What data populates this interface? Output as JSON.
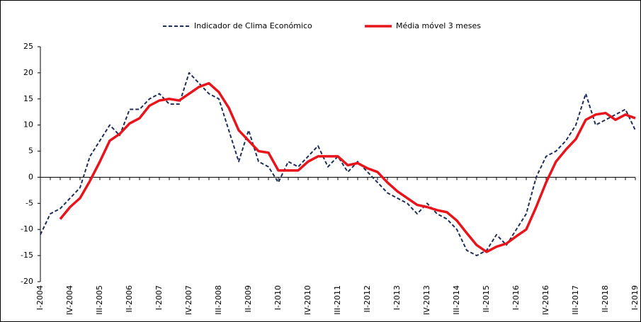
{
  "chart_data": {
    "type": "line",
    "categories": [
      "I-2004",
      null,
      null,
      "IV-2004",
      null,
      null,
      "III-2005",
      null,
      null,
      "II-2006",
      null,
      null,
      "I-2007",
      null,
      null,
      "IV-2007",
      null,
      null,
      "III-2008",
      null,
      null,
      "II-2009",
      null,
      null,
      "I-2010",
      null,
      null,
      "IV-2010",
      null,
      null,
      "III-2011",
      null,
      null,
      "II-2012",
      null,
      null,
      "I-2013",
      null,
      null,
      "IV-2013",
      null,
      null,
      "III-2014",
      null,
      null,
      "II-2015",
      null,
      null,
      "I-2016",
      null,
      null,
      "IV-2016",
      null,
      null,
      "III-2017",
      null,
      null,
      "II-2018",
      null,
      null,
      "I-2019"
    ],
    "series": [
      {
        "name": "Indicador de Clima Económico",
        "color": "#1f2d5a",
        "dashed": true,
        "values": [
          -11,
          -7,
          -6,
          -4,
          -2,
          4,
          7,
          10,
          8,
          13,
          13,
          15,
          16,
          14,
          14,
          20,
          18,
          16,
          15,
          9,
          3,
          9,
          3,
          2,
          -1,
          3,
          2,
          4,
          6,
          2,
          4,
          1,
          3,
          1,
          -1,
          -3,
          -4,
          -5,
          -7,
          -5,
          -7,
          -8,
          -10,
          -14,
          -15,
          -14,
          -11,
          -13,
          -10,
          -7,
          0,
          4,
          5,
          7,
          10,
          16,
          10,
          11,
          12,
          13,
          9
        ]
      },
      {
        "name": "Média móvel 3 meses",
        "color": "#e8141c",
        "dashed": false,
        "values": [
          null,
          null,
          -8,
          -5.7,
          -4,
          -0.7,
          3,
          7,
          8.3,
          10.3,
          11.3,
          13.7,
          14.7,
          15,
          14.7,
          16,
          17.3,
          18,
          16.3,
          13.3,
          9,
          7,
          5,
          4.7,
          1.3,
          1.3,
          1.3,
          3,
          4,
          4,
          4,
          2.3,
          2.7,
          1.7,
          1,
          -1,
          -2.7,
          -4,
          -5.3,
          -5.7,
          -6.3,
          -6.7,
          -8.3,
          -10.7,
          -13,
          -14.3,
          -13.3,
          -12.7,
          -11.3,
          -10,
          -5.7,
          -1,
          3,
          5.3,
          7.3,
          11,
          12,
          12.3,
          11,
          12,
          11.3
        ]
      }
    ],
    "ylim": [
      -20,
      25
    ],
    "yticks": [
      -20,
      -15,
      -10,
      -5,
      0,
      5,
      10,
      15,
      20,
      25
    ],
    "legend": "top"
  }
}
